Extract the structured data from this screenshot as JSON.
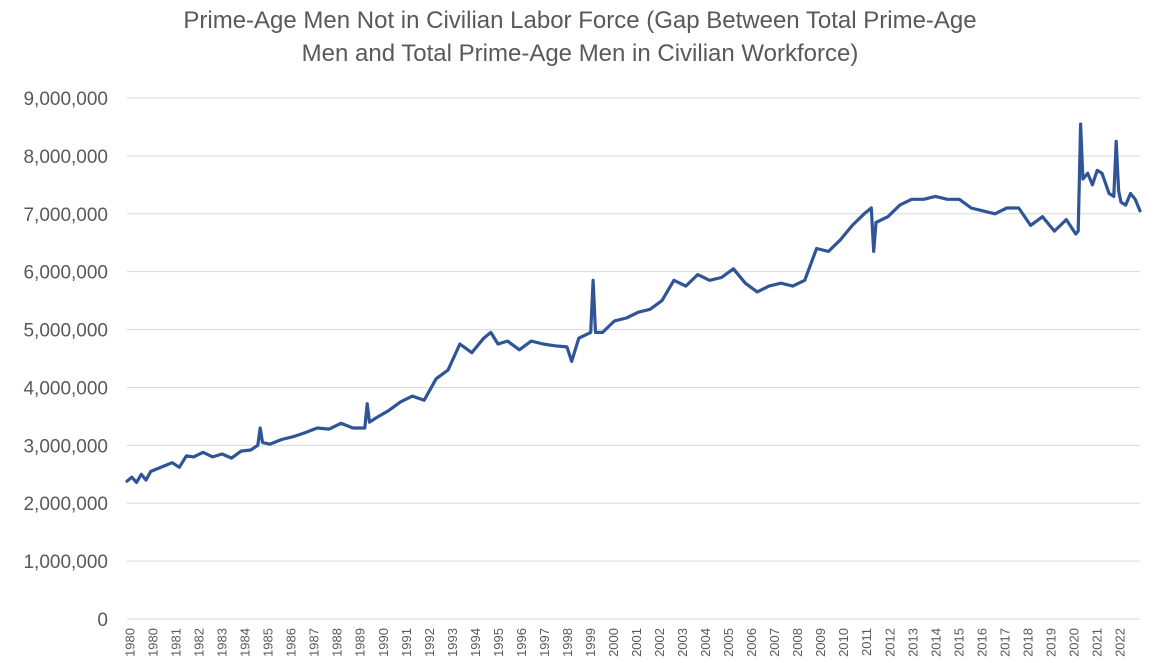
{
  "chart_data": {
    "type": "line",
    "title_lines": [
      "Prime-Age Men Not in Civilian Labor Force (Gap Between Total Prime-Age",
      "Men and Total Prime-Age Men in Civilian Workforce)"
    ],
    "xlabel": "",
    "ylabel": "",
    "ylim": [
      0,
      9000000
    ],
    "y_ticks": [
      0,
      1000000,
      2000000,
      3000000,
      4000000,
      5000000,
      6000000,
      7000000,
      8000000,
      9000000
    ],
    "y_tick_labels": [
      "0",
      "1,000,000",
      "2,000,000",
      "3,000,000",
      "4,000,000",
      "5,000,000",
      "6,000,000",
      "7,000,000",
      "8,000,000",
      "9,000,000"
    ],
    "x_tick_labels": [
      "1980",
      "1980",
      "1981",
      "1982",
      "1983",
      "1984",
      "1985",
      "1986",
      "1987",
      "1988",
      "1989",
      "1990",
      "1991",
      "1992",
      "1993",
      "1994",
      "1995",
      "1996",
      "1997",
      "1998",
      "1999",
      "2000",
      "2001",
      "2002",
      "2003",
      "2004",
      "2005",
      "2006",
      "2007",
      "2008",
      "2009",
      "2010",
      "2011",
      "2012",
      "2013",
      "2014",
      "2015",
      "2016",
      "2017",
      "2018",
      "2019",
      "2020",
      "2021",
      "2022"
    ],
    "xlim": [
      1980.0,
      2022.6
    ],
    "grid": true,
    "legend": "none",
    "line_color": "#2f5597",
    "series": [
      {
        "x": [
          1980.0,
          1980.2,
          1980.4,
          1980.6,
          1980.8,
          1981.0,
          1981.3,
          1981.6,
          1981.9,
          1982.2,
          1982.5,
          1982.8,
          1983.2,
          1983.6,
          1984.0,
          1984.4,
          1984.8,
          1985.2,
          1985.5,
          1985.6,
          1985.7,
          1986.0,
          1986.5,
          1987.0,
          1987.5,
          1988.0,
          1988.5,
          1989.0,
          1989.5,
          1990.0,
          1990.1,
          1990.2,
          1990.5,
          1991.0,
          1991.5,
          1992.0,
          1992.5,
          1993.0,
          1993.5,
          1994.0,
          1994.5,
          1995.0,
          1995.3,
          1995.6,
          1996.0,
          1996.5,
          1997.0,
          1997.5,
          1998.0,
          1998.5,
          1998.7,
          1999.0,
          1999.5,
          1999.6,
          1999.7,
          2000.0,
          2000.5,
          2001.0,
          2001.5,
          2002.0,
          2002.5,
          2003.0,
          2003.5,
          2004.0,
          2004.5,
          2005.0,
          2005.5,
          2006.0,
          2006.5,
          2007.0,
          2007.5,
          2008.0,
          2008.5,
          2009.0,
          2009.5,
          2010.0,
          2010.5,
          2011.0,
          2011.3,
          2011.4,
          2011.5,
          2012.0,
          2012.5,
          2013.0,
          2013.5,
          2014.0,
          2014.5,
          2015.0,
          2015.5,
          2016.0,
          2016.5,
          2017.0,
          2017.5,
          2018.0,
          2018.5,
          2019.0,
          2019.5,
          2019.9,
          2020.0,
          2020.1,
          2020.2,
          2020.4,
          2020.6,
          2020.8,
          2021.0,
          2021.3,
          2021.5,
          2021.6,
          2021.7,
          2021.8,
          2022.0,
          2022.2,
          2022.4,
          2022.6
        ],
        "y": [
          2380000,
          2450000,
          2360000,
          2500000,
          2400000,
          2550000,
          2600000,
          2650000,
          2700000,
          2620000,
          2820000,
          2800000,
          2880000,
          2800000,
          2850000,
          2780000,
          2900000,
          2920000,
          3000000,
          3300000,
          3050000,
          3020000,
          3100000,
          3150000,
          3220000,
          3300000,
          3280000,
          3380000,
          3300000,
          3300000,
          3720000,
          3400000,
          3480000,
          3600000,
          3750000,
          3850000,
          3780000,
          4150000,
          4300000,
          4750000,
          4600000,
          4850000,
          4950000,
          4750000,
          4800000,
          4650000,
          4800000,
          4750000,
          4720000,
          4700000,
          4450000,
          4850000,
          4950000,
          5850000,
          4950000,
          4950000,
          5150000,
          5200000,
          5300000,
          5350000,
          5500000,
          5850000,
          5750000,
          5950000,
          5850000,
          5900000,
          6050000,
          5800000,
          5650000,
          5750000,
          5800000,
          5750000,
          5850000,
          6400000,
          6350000,
          6550000,
          6800000,
          7000000,
          7100000,
          6350000,
          6850000,
          6950000,
          7150000,
          7250000,
          7250000,
          7300000,
          7250000,
          7250000,
          7100000,
          7050000,
          7000000,
          7100000,
          7100000,
          6800000,
          6950000,
          6700000,
          6900000,
          6650000,
          6700000,
          8550000,
          7600000,
          7700000,
          7500000,
          7750000,
          7700000,
          7350000,
          7300000,
          8250000,
          7400000,
          7200000,
          7150000,
          7350000,
          7250000,
          7050000
        ]
      }
    ]
  }
}
